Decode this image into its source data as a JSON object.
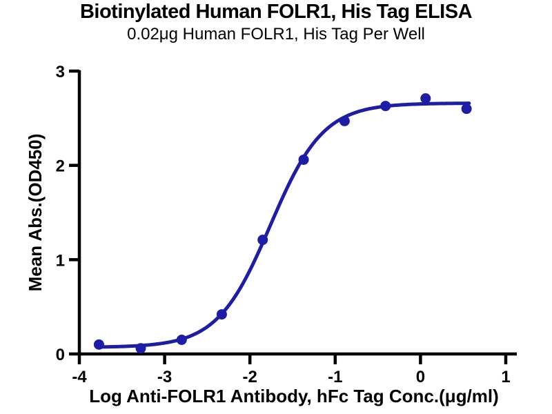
{
  "chart_data": {
    "type": "scatter",
    "title": "Biotinylated Human FOLR1, His Tag ELISA",
    "subtitle": "0.02μg Human FOLR1, His Tag Per Well",
    "xlabel": "Log Anti-FOLR1 Antibody, hFc Tag Conc.(μg/ml)",
    "ylabel": "Mean Abs.(OD450)",
    "xlim": [
      -4,
      1
    ],
    "ylim": [
      0,
      3
    ],
    "x_ticks": [
      -4,
      -3,
      -2,
      -1,
      0,
      1
    ],
    "y_ticks": [
      0,
      1,
      2,
      3
    ],
    "grid": false,
    "legend": "none",
    "series": [
      {
        "name": "Anti-FOLR1 Antibody, hFc Tag",
        "x": [
          -3.77,
          -3.28,
          -2.8,
          -2.33,
          -1.85,
          -1.37,
          -0.89,
          -0.41,
          0.06,
          0.54
        ],
        "y": [
          0.1,
          0.06,
          0.15,
          0.42,
          1.21,
          2.06,
          2.47,
          2.63,
          2.71,
          2.6
        ]
      }
    ],
    "curve_fit": {
      "model": "4PL",
      "bottom": 0.07,
      "top": 2.66,
      "log_ec50": -1.76,
      "hill_slope": 1.4,
      "x_start": -3.79,
      "x_end": 0.57
    },
    "colors": {
      "series": "#1d1da5",
      "axis": "#000000",
      "background": "#ffffff"
    }
  }
}
